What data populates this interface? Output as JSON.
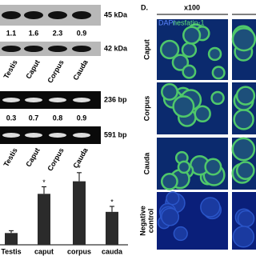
{
  "western_blot": {
    "bands": [
      "45 kDa",
      "42 kDa"
    ],
    "ratios": [
      1.1,
      1.6,
      2.3,
      0.9
    ],
    "lanes": [
      "Testis",
      "Caput",
      "Corpus",
      "Cauda"
    ]
  },
  "rt_pcr": {
    "bands": [
      "236 bp",
      "591 bp"
    ],
    "ratios": [
      0.3,
      0.7,
      0.8,
      0.9
    ],
    "lanes": [
      "Testis",
      "Caput",
      "Corpus",
      "Cauda"
    ]
  },
  "bar_chart": {
    "type": "bar",
    "categories": [
      "Testis",
      "caput",
      "corpus",
      "cauda"
    ],
    "values": [
      15,
      65,
      81,
      42
    ],
    "errors": [
      3,
      9,
      11,
      7
    ],
    "ylim": [
      0,
      100
    ],
    "color": "#2b2b2b",
    "significance_marker": "*",
    "significant": [
      false,
      true,
      true,
      true
    ]
  },
  "panel_d": {
    "label": "D.",
    "magnification": "x100",
    "legend": [
      "DAPI",
      "nesfatin-1"
    ],
    "rows": [
      [
        "Caput"
      ],
      [
        "Corpus"
      ],
      [
        "Cauda"
      ],
      [
        "Negative",
        "control"
      ]
    ]
  }
}
